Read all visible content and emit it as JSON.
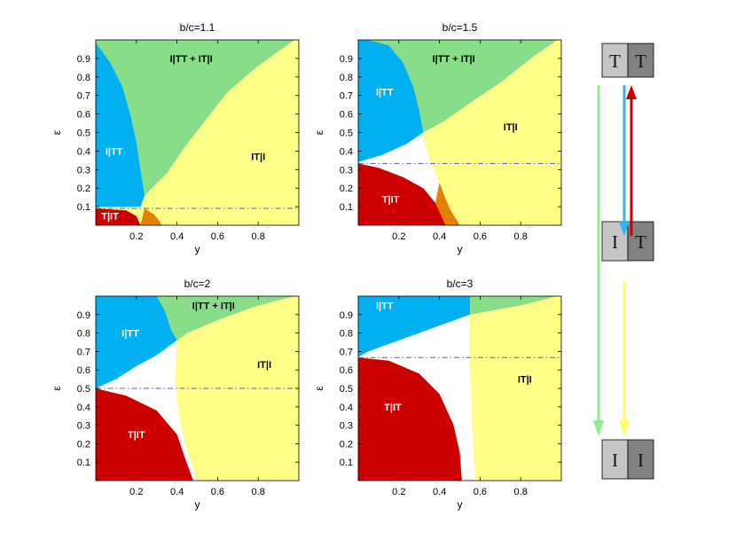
{
  "colors": {
    "blue": "#00b0f0",
    "green": "#88dd88",
    "yellow": "#ffff88",
    "red": "#cc0000",
    "orange": "#e38000",
    "threshold": "#5a5adc",
    "box_light": "#c6c6c6",
    "box_dark": "#828282",
    "arrow_green": "#90ee90",
    "arrow_blue": "#33b5f0",
    "arrow_red": "#cc0000",
    "arrow_yellow": "#ffff66"
  },
  "chart_data": [
    {
      "type": "area",
      "title": "b/c=1.1",
      "xlabel": "y",
      "ylabel": "ε",
      "xlim": [
        0,
        1
      ],
      "ylim": [
        0,
        1
      ],
      "xticks": [
        "0.2",
        "0.4",
        "0.6",
        "0.8"
      ],
      "yticks": [
        "0.1",
        "0.2",
        "0.3",
        "0.4",
        "0.5",
        "0.6",
        "0.7",
        "0.8",
        "0.9"
      ],
      "threshold": 0.091,
      "regions": [
        {
          "name": "yellow",
          "color": "yellow",
          "points": [
            [
              0,
              0
            ],
            [
              1,
              0
            ],
            [
              1,
              1
            ],
            [
              0,
              1
            ]
          ]
        },
        {
          "name": "green",
          "color": "green",
          "points": [
            [
              0,
              1
            ],
            [
              0.98,
              1
            ],
            [
              0.8,
              0.86
            ],
            [
              0.65,
              0.72
            ],
            [
              0.55,
              0.58
            ],
            [
              0.45,
              0.44
            ],
            [
              0.35,
              0.28
            ],
            [
              0.24,
              0.16
            ],
            [
              0.22,
              0.3
            ],
            [
              0.2,
              0.45
            ],
            [
              0.17,
              0.6
            ],
            [
              0.13,
              0.75
            ],
            [
              0.07,
              0.88
            ],
            [
              0,
              0.985
            ]
          ]
        },
        {
          "name": "blue",
          "color": "blue",
          "points": [
            [
              0,
              0.985
            ],
            [
              0.07,
              0.88
            ],
            [
              0.13,
              0.75
            ],
            [
              0.17,
              0.6
            ],
            [
              0.2,
              0.45
            ],
            [
              0.22,
              0.3
            ],
            [
              0.24,
              0.16
            ],
            [
              0.22,
              0.1
            ],
            [
              0,
              0.1
            ]
          ]
        },
        {
          "name": "orange",
          "color": "orange",
          "points": [
            [
              0.24,
              0.091
            ],
            [
              0.285,
              0.06
            ],
            [
              0.315,
              0.02
            ],
            [
              0.325,
              0
            ],
            [
              0.22,
              0
            ]
          ]
        },
        {
          "name": "red",
          "color": "red",
          "points": [
            [
              0,
              0.091
            ],
            [
              0.15,
              0.08
            ],
            [
              0.2,
              0.05
            ],
            [
              0.22,
              0
            ],
            [
              0,
              0
            ]
          ]
        }
      ],
      "labels": [
        {
          "text": "I|TT + IT|I",
          "x": 0.47,
          "y": 0.9,
          "color": "#000000"
        },
        {
          "text": "I|TT",
          "x": 0.09,
          "y": 0.4,
          "color": "#ffffff"
        },
        {
          "text": "IT|I",
          "x": 0.8,
          "y": 0.37,
          "color": "#000000"
        },
        {
          "text": "T|IT",
          "x": 0.07,
          "y": 0.05,
          "color": "#ffffff"
        }
      ]
    },
    {
      "type": "area",
      "title": "b/c=1.5",
      "xlabel": "y",
      "ylabel": "ε",
      "xlim": [
        0,
        1
      ],
      "ylim": [
        0,
        1
      ],
      "xticks": [
        "0.2",
        "0.4",
        "0.6",
        "0.8"
      ],
      "yticks": [
        "0.1",
        "0.2",
        "0.3",
        "0.4",
        "0.5",
        "0.6",
        "0.7",
        "0.8",
        "0.9"
      ],
      "threshold": 0.333,
      "regions": [
        {
          "name": "yellow",
          "color": "yellow",
          "points": [
            [
              0,
              0
            ],
            [
              1,
              0
            ],
            [
              1,
              1
            ],
            [
              0,
              1
            ]
          ]
        },
        {
          "name": "green",
          "color": "green",
          "points": [
            [
              0,
              1
            ],
            [
              0.98,
              1
            ],
            [
              0.85,
              0.9
            ],
            [
              0.7,
              0.77
            ],
            [
              0.55,
              0.66
            ],
            [
              0.42,
              0.56
            ],
            [
              0.32,
              0.5
            ],
            [
              0.3,
              0.62
            ],
            [
              0.27,
              0.75
            ],
            [
              0.22,
              0.88
            ],
            [
              0.15,
              0.97
            ],
            [
              0.05,
              1
            ]
          ]
        },
        {
          "name": "blue",
          "color": "blue",
          "points": [
            [
              0,
              1
            ],
            [
              0.05,
              1
            ],
            [
              0.15,
              0.97
            ],
            [
              0.22,
              0.88
            ],
            [
              0.27,
              0.75
            ],
            [
              0.3,
              0.62
            ],
            [
              0.32,
              0.5
            ],
            [
              0.24,
              0.44
            ],
            [
              0.12,
              0.38
            ],
            [
              0,
              0.34
            ]
          ]
        },
        {
          "name": "white",
          "color": "white",
          "points": [
            [
              0,
              0.34
            ],
            [
              0.12,
              0.38
            ],
            [
              0.24,
              0.44
            ],
            [
              0.32,
              0.5
            ],
            [
              0.33,
              0.42
            ],
            [
              0.36,
              0.34
            ],
            [
              0.38,
              0.28
            ],
            [
              0.4,
              0.23
            ],
            [
              0.42,
              0.17
            ],
            [
              0.45,
              0.09
            ],
            [
              0.5,
              0
            ],
            [
              0.43,
              0
            ],
            [
              0.38,
              0.12
            ],
            [
              0.32,
              0.2
            ],
            [
              0.22,
              0.26
            ],
            [
              0.1,
              0.31
            ]
          ]
        },
        {
          "name": "orange",
          "color": "orange",
          "points": [
            [
              0.38,
              0.12
            ],
            [
              0.43,
              0
            ],
            [
              0.5,
              0
            ],
            [
              0.45,
              0.09
            ],
            [
              0.42,
              0.17
            ],
            [
              0.4,
              0.23
            ]
          ]
        },
        {
          "name": "red",
          "color": "red",
          "points": [
            [
              0,
              0.333
            ],
            [
              0.1,
              0.31
            ],
            [
              0.22,
              0.26
            ],
            [
              0.32,
              0.2
            ],
            [
              0.38,
              0.12
            ],
            [
              0.43,
              0
            ],
            [
              0,
              0
            ]
          ]
        }
      ],
      "labels": [
        {
          "text": "I|TT + IT|I",
          "x": 0.47,
          "y": 0.9,
          "color": "#000000"
        },
        {
          "text": "I|TT",
          "x": 0.13,
          "y": 0.72,
          "color": "#ffffff"
        },
        {
          "text": "IT|I",
          "x": 0.75,
          "y": 0.53,
          "color": "#000000"
        },
        {
          "text": "T|IT",
          "x": 0.16,
          "y": 0.14,
          "color": "#ffffff"
        }
      ]
    },
    {
      "type": "area",
      "title": "b/c=2",
      "xlabel": "y",
      "ylabel": "ε",
      "xlim": [
        0,
        1
      ],
      "ylim": [
        0,
        1
      ],
      "xticks": [
        "0.2",
        "0.4",
        "0.6",
        "0.8"
      ],
      "yticks": [
        "0.1",
        "0.2",
        "0.3",
        "0.4",
        "0.5",
        "0.6",
        "0.7",
        "0.8",
        "0.9"
      ],
      "threshold": 0.5,
      "regions": [
        {
          "name": "yellow",
          "color": "yellow",
          "points": [
            [
              0,
              0
            ],
            [
              1,
              0
            ],
            [
              1,
              1
            ],
            [
              0,
              1
            ]
          ]
        },
        {
          "name": "green",
          "color": "green",
          "points": [
            [
              0.3,
              1
            ],
            [
              0.98,
              1
            ],
            [
              0.8,
              0.95
            ],
            [
              0.6,
              0.87
            ],
            [
              0.45,
              0.8
            ],
            [
              0.4,
              0.76
            ],
            [
              0.37,
              0.82
            ],
            [
              0.34,
              0.92
            ]
          ]
        },
        {
          "name": "blue",
          "color": "blue",
          "points": [
            [
              0,
              1
            ],
            [
              0.3,
              1
            ],
            [
              0.34,
              0.92
            ],
            [
              0.37,
              0.82
            ],
            [
              0.4,
              0.76
            ],
            [
              0.3,
              0.68
            ],
            [
              0.2,
              0.62
            ],
            [
              0.1,
              0.55
            ],
            [
              0,
              0.5
            ]
          ]
        },
        {
          "name": "white",
          "color": "white",
          "points": [
            [
              0,
              0.5
            ],
            [
              0.1,
              0.55
            ],
            [
              0.2,
              0.62
            ],
            [
              0.3,
              0.68
            ],
            [
              0.4,
              0.76
            ],
            [
              0.39,
              0.55
            ],
            [
              0.41,
              0.35
            ],
            [
              0.44,
              0.2
            ],
            [
              0.5,
              0
            ],
            [
              0.48,
              0
            ],
            [
              0.44,
              0.12
            ],
            [
              0.4,
              0.25
            ],
            [
              0.3,
              0.38
            ],
            [
              0.15,
              0.46
            ]
          ]
        },
        {
          "name": "red",
          "color": "red",
          "points": [
            [
              0,
              0.5
            ],
            [
              0.15,
              0.46
            ],
            [
              0.3,
              0.38
            ],
            [
              0.4,
              0.25
            ],
            [
              0.44,
              0.12
            ],
            [
              0.48,
              0
            ],
            [
              0,
              0
            ]
          ]
        }
      ],
      "labels": [
        {
          "text": "I|TT + IT|I",
          "x": 0.58,
          "y": 0.95,
          "color": "#000000"
        },
        {
          "text": "I|TT",
          "x": 0.17,
          "y": 0.8,
          "color": "#ffffff"
        },
        {
          "text": "IT|I",
          "x": 0.83,
          "y": 0.63,
          "color": "#000000"
        },
        {
          "text": "T|IT",
          "x": 0.2,
          "y": 0.25,
          "color": "#ffffff"
        }
      ]
    },
    {
      "type": "area",
      "title": "b/c=3",
      "xlabel": "y",
      "ylabel": "ε",
      "xlim": [
        0,
        1
      ],
      "ylim": [
        0,
        1
      ],
      "xticks": [
        "0.2",
        "0.4",
        "0.6",
        "0.8"
      ],
      "yticks": [
        "0.1",
        "0.2",
        "0.3",
        "0.4",
        "0.5",
        "0.6",
        "0.7",
        "0.8",
        "0.9"
      ],
      "threshold": 0.667,
      "regions": [
        {
          "name": "yellow",
          "color": "yellow",
          "points": [
            [
              0,
              0
            ],
            [
              1,
              0
            ],
            [
              1,
              1
            ],
            [
              0,
              1
            ]
          ]
        },
        {
          "name": "green",
          "color": "green",
          "points": [
            [
              0.55,
              1
            ],
            [
              0.98,
              1
            ],
            [
              0.8,
              0.95
            ],
            [
              0.65,
              0.92
            ],
            [
              0.55,
              0.9
            ]
          ]
        },
        {
          "name": "blue",
          "color": "blue",
          "points": [
            [
              0,
              1
            ],
            [
              0.55,
              1
            ],
            [
              0.55,
              0.9
            ],
            [
              0.4,
              0.84
            ],
            [
              0.2,
              0.76
            ],
            [
              0.05,
              0.7
            ],
            [
              0,
              0.67
            ]
          ]
        },
        {
          "name": "white",
          "color": "white",
          "points": [
            [
              0,
              0.67
            ],
            [
              0.05,
              0.7
            ],
            [
              0.2,
              0.76
            ],
            [
              0.4,
              0.84
            ],
            [
              0.55,
              0.9
            ],
            [
              0.55,
              0.6
            ],
            [
              0.56,
              0.3
            ],
            [
              0.57,
              0.1
            ],
            [
              0.58,
              0
            ],
            [
              0.51,
              0
            ],
            [
              0.5,
              0.15
            ],
            [
              0.47,
              0.3
            ],
            [
              0.4,
              0.47
            ],
            [
              0.3,
              0.58
            ],
            [
              0.15,
              0.65
            ]
          ]
        },
        {
          "name": "red",
          "color": "red",
          "points": [
            [
              0,
              0.667
            ],
            [
              0.15,
              0.65
            ],
            [
              0.3,
              0.58
            ],
            [
              0.4,
              0.47
            ],
            [
              0.47,
              0.3
            ],
            [
              0.5,
              0.15
            ],
            [
              0.51,
              0
            ],
            [
              0,
              0
            ]
          ]
        }
      ],
      "labels": [
        {
          "text": "I|TT",
          "x": 0.13,
          "y": 0.95,
          "color": "#ffffff"
        },
        {
          "text": "IT|I",
          "x": 0.82,
          "y": 0.55,
          "color": "#000000"
        },
        {
          "text": "T|IT",
          "x": 0.17,
          "y": 0.4,
          "color": "#ffffff"
        }
      ]
    }
  ],
  "legend": {
    "boxes": [
      {
        "left": "T",
        "right": "T"
      },
      {
        "left": "I",
        "right": "T"
      },
      {
        "left": "I",
        "right": "I"
      }
    ]
  }
}
